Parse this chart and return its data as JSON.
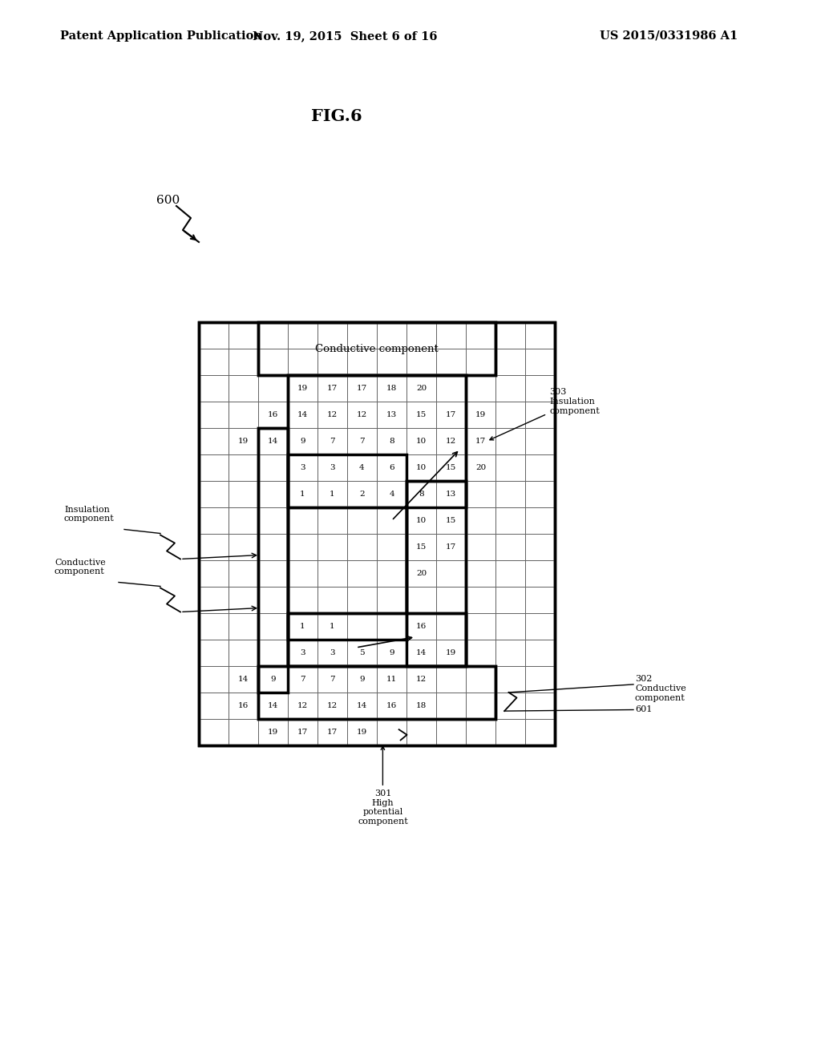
{
  "header_left": "Patent Application Publication",
  "header_center": "Nov. 19, 2015  Sheet 6 of 16",
  "header_right": "US 2015/0331986 A1",
  "bg_color": "#ffffff",
  "title": "FIG.6",
  "fig_label": "600",
  "conductive_top_label": "Conductive component",
  "numbers": {
    "row2": {
      "cols": [
        3,
        4,
        5,
        6,
        7
      ],
      "vals": [
        19,
        17,
        17,
        18,
        20
      ]
    },
    "row3": {
      "cols": [
        2,
        3,
        4,
        5,
        6,
        7,
        8,
        9
      ],
      "vals": [
        16,
        14,
        12,
        12,
        13,
        15,
        17,
        19
      ]
    },
    "row4": {
      "cols": [
        1,
        2,
        3,
        4,
        5,
        6,
        7,
        8,
        9
      ],
      "vals": [
        19,
        14,
        9,
        7,
        7,
        8,
        10,
        12,
        17
      ]
    },
    "row5": {
      "cols": [
        3,
        4,
        5,
        6,
        7,
        8,
        9
      ],
      "vals": [
        3,
        3,
        4,
        6,
        10,
        15,
        20
      ]
    },
    "row6": {
      "cols": [
        3,
        4,
        5,
        6,
        7,
        8
      ],
      "vals": [
        1,
        1,
        2,
        4,
        8,
        13
      ]
    },
    "row7": {
      "cols": [
        7,
        8
      ],
      "vals": [
        10,
        15
      ]
    },
    "row8": {
      "cols": [
        7,
        8
      ],
      "vals": [
        15,
        17
      ]
    },
    "row9": {
      "cols": [
        7
      ],
      "vals": [
        20
      ]
    },
    "row11": {
      "cols": [
        3,
        4,
        7
      ],
      "vals": [
        1,
        1,
        16
      ]
    },
    "row12": {
      "cols": [
        3,
        4,
        5,
        6,
        7,
        8
      ],
      "vals": [
        3,
        3,
        5,
        9,
        14,
        19
      ]
    },
    "row13": {
      "cols": [
        1,
        2,
        3,
        4,
        5,
        6,
        7
      ],
      "vals": [
        14,
        9,
        7,
        7,
        9,
        11,
        12
      ]
    },
    "row14": {
      "cols": [
        1,
        2,
        3,
        4,
        5,
        6,
        7
      ],
      "vals": [
        16,
        14,
        12,
        12,
        14,
        16,
        18
      ]
    },
    "row15": {
      "cols": [
        2,
        3,
        4,
        5
      ],
      "vals": [
        19,
        17,
        17,
        19
      ]
    }
  }
}
